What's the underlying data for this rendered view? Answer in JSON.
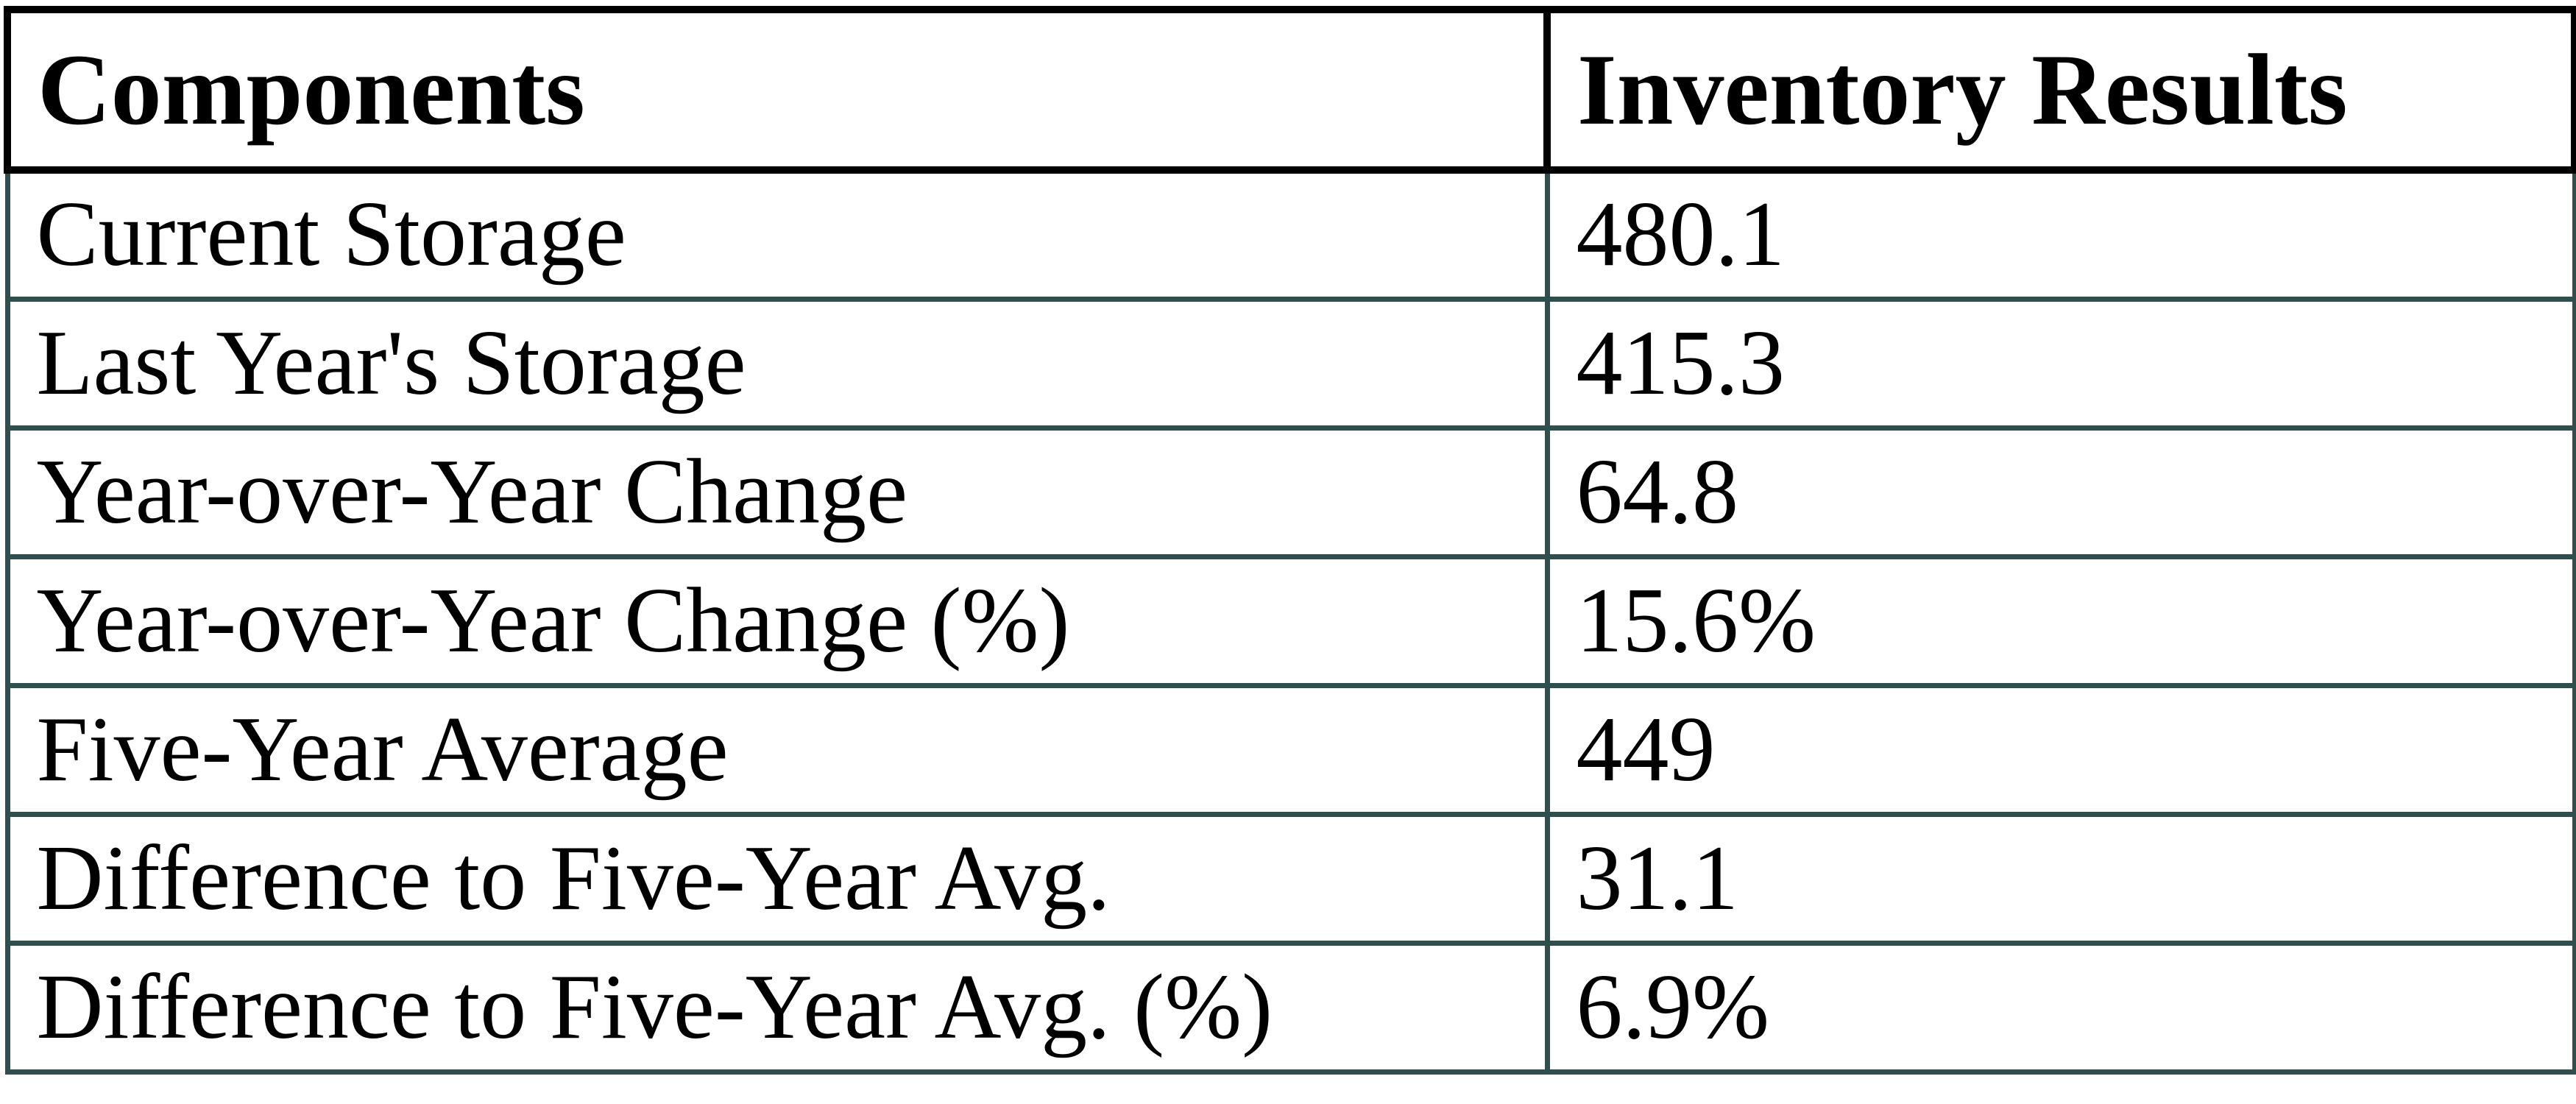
{
  "page": {
    "background": "#ffffff"
  },
  "table": {
    "columns": [
      {
        "label": "Components"
      },
      {
        "label": "Inventory Results"
      }
    ],
    "rows": [
      {
        "label": "Current Storage",
        "value": "480.1"
      },
      {
        "label": "Last Year's Storage",
        "value": "415.3"
      },
      {
        "label": "Year-over-Year Change",
        "value": "64.8"
      },
      {
        "label": "Year-over-Year Change (%)",
        "value": "15.6%"
      },
      {
        "label": "Five-Year Average",
        "value": "449"
      },
      {
        "label": "Difference to Five-Year Avg.",
        "value": "31.1"
      },
      {
        "label": "Difference to Five-Year Avg. (%)",
        "value": "6.9%"
      }
    ],
    "style": {
      "header_border_color": "#000000",
      "body_border_color": "#2f4f4f",
      "text_color": "#000000"
    }
  },
  "chart_data": {
    "type": "table",
    "title": "",
    "columns": [
      "Components",
      "Inventory Results"
    ],
    "rows": [
      [
        "Current Storage",
        "480.1"
      ],
      [
        "Last Year's Storage",
        "415.3"
      ],
      [
        "Year-over-Year Change",
        "64.8"
      ],
      [
        "Year-over-Year Change (%)",
        "15.6%"
      ],
      [
        "Five-Year Average",
        "449"
      ],
      [
        "Difference to Five-Year Avg.",
        "31.1"
      ],
      [
        "Difference to Five-Year Avg. (%)",
        "6.9%"
      ]
    ]
  }
}
